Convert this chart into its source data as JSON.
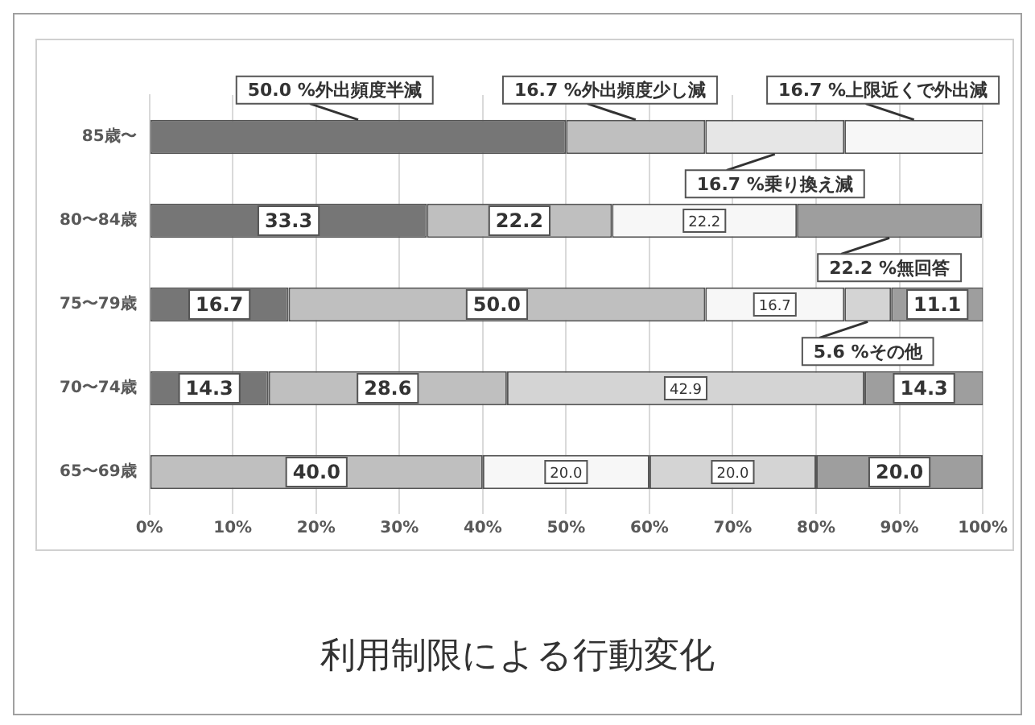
{
  "chart_data": {
    "type": "bar",
    "orientation": "horizontal",
    "stacked": true,
    "title": "利用制限による行動変化",
    "categories": [
      "85歳〜",
      "80〜84歳",
      "75〜79歳",
      "70〜74歳",
      "65〜69歳"
    ],
    "series": [
      {
        "name": "外出頻度半減",
        "color": "#767676",
        "values": [
          50.0,
          33.3,
          16.7,
          14.3,
          null
        ],
        "value_labels": [
          "50.0 %",
          "33.3",
          "16.7",
          "14.3",
          null
        ]
      },
      {
        "name": "外出頻度少し減",
        "color": "#bfbfbf",
        "values": [
          16.7,
          22.2,
          50.0,
          28.6,
          40.0
        ],
        "value_labels": [
          "16.7 %",
          "22.2",
          "50.0",
          "28.6",
          "40.0"
        ]
      },
      {
        "name": "乗り換え減",
        "color": "#e6e6e6",
        "values": [
          16.7,
          null,
          null,
          null,
          null
        ],
        "value_labels": [
          "16.7 %",
          null,
          null,
          null,
          null
        ]
      },
      {
        "name": "上限近くで外出減",
        "color": "#f7f7f7",
        "values": [
          16.7,
          22.2,
          16.7,
          null,
          20.0
        ],
        "value_labels": [
          "16.7 %",
          "22.2",
          "16.7",
          null,
          "20.0"
        ]
      },
      {
        "name": "その他",
        "color": "#d4d4d4",
        "values": [
          null,
          null,
          5.6,
          42.9,
          20.0
        ],
        "value_labels": [
          null,
          null,
          "5.6 %",
          "42.9",
          "20.0"
        ]
      },
      {
        "name": "無回答",
        "color": "#9e9e9e",
        "values": [
          null,
          22.2,
          11.1,
          14.3,
          20.0
        ],
        "value_labels": [
          null,
          "22.2 %",
          "11.1",
          "14.3",
          "20.0"
        ]
      }
    ],
    "xlim": [
      0,
      100
    ],
    "xticks": [
      {
        "value": 0,
        "label": "0%"
      },
      {
        "value": 10,
        "label": "10%"
      },
      {
        "value": 20,
        "label": "20%"
      },
      {
        "value": 30,
        "label": "30%"
      },
      {
        "value": 40,
        "label": "40%"
      },
      {
        "value": 50,
        "label": "50%"
      },
      {
        "value": 60,
        "label": "60%"
      },
      {
        "value": 70,
        "label": "70%"
      },
      {
        "value": 80,
        "label": "80%"
      },
      {
        "value": 90,
        "label": "90%"
      },
      {
        "value": 100,
        "label": "100%"
      }
    ],
    "grid": "x"
  }
}
